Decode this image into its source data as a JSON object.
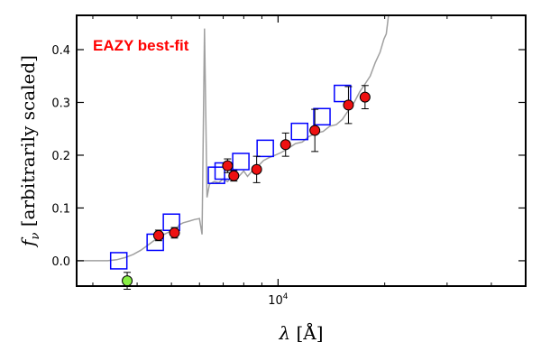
{
  "chart_data": {
    "type": "scatter",
    "annotation": "EAZY best-fit",
    "annotation_color": "#ff0000",
    "xlabel": "λ [Å]",
    "ylabel": "f_ν [arbitrarily scaled]",
    "x_scale": "log",
    "xlim": [
      2700,
      50000
    ],
    "ylim": [
      -0.048,
      0.465
    ],
    "x_ticks": [
      {
        "value": 10000,
        "label": "10^4"
      }
    ],
    "y_ticks": [
      {
        "value": 0.0,
        "label": "0.0"
      },
      {
        "value": 0.1,
        "label": "0.1"
      },
      {
        "value": 0.2,
        "label": "0.2"
      },
      {
        "value": 0.3,
        "label": "0.3"
      },
      {
        "value": 0.4,
        "label": "0.4"
      }
    ],
    "grid": false,
    "series": [
      {
        "role": "template-spectrum",
        "style": "line",
        "color": "#a0a0a0",
        "x": [
          2700,
          3000,
          3300,
          3500,
          3700,
          3900,
          4100,
          4300,
          4500,
          4700,
          4900,
          5050,
          5100,
          5150,
          5250,
          5400,
          5600,
          5800,
          6000,
          6100,
          6200,
          6300,
          6400,
          6600,
          6800,
          7000,
          7200,
          7400,
          7600,
          7800,
          8000,
          8200,
          8500,
          8800,
          9100,
          9400,
          9800,
          10200,
          10700,
          11200,
          11700,
          12200,
          12800,
          13400,
          14000,
          14600,
          15200,
          15800,
          16400,
          17000,
          17600,
          18200,
          18800,
          19400,
          19900,
          20200,
          20500
        ],
        "y": [
          0.0,
          0.0,
          0.0,
          0.002,
          0.006,
          0.012,
          0.02,
          0.03,
          0.04,
          0.048,
          0.054,
          0.06,
          0.058,
          0.056,
          0.068,
          0.072,
          0.075,
          0.078,
          0.08,
          0.05,
          0.44,
          0.12,
          0.145,
          0.15,
          0.148,
          0.155,
          0.15,
          0.158,
          0.155,
          0.162,
          0.17,
          0.16,
          0.172,
          0.18,
          0.19,
          0.195,
          0.2,
          0.205,
          0.213,
          0.222,
          0.225,
          0.235,
          0.242,
          0.245,
          0.255,
          0.258,
          0.268,
          0.285,
          0.3,
          0.32,
          0.335,
          0.35,
          0.375,
          0.395,
          0.42,
          0.43,
          0.465
        ]
      },
      {
        "role": "model-fluxes",
        "style": "open-square",
        "color": "#0000ff",
        "x": [
          3550,
          4500,
          5000,
          6700,
          7000,
          7850,
          9200,
          11500,
          13300,
          15200
        ],
        "y": [
          0.0,
          0.035,
          0.073,
          0.162,
          0.17,
          0.188,
          0.213,
          0.245,
          0.273,
          0.317
        ]
      },
      {
        "role": "observed-fluxes",
        "style": "filled-circle",
        "color": "#ee1111",
        "edge": "#000000",
        "x": [
          4600,
          5100,
          7200,
          7500,
          8700,
          10500,
          12700,
          15800,
          17600
        ],
        "y": [
          0.048,
          0.053,
          0.18,
          0.161,
          0.173,
          0.22,
          0.247,
          0.295,
          0.31
        ],
        "yerr": [
          0.01,
          0.01,
          0.013,
          0.01,
          0.025,
          0.022,
          0.04,
          0.035,
          0.022
        ]
      },
      {
        "role": "upper-limit-point",
        "style": "filled-circle",
        "color": "#88ee44",
        "edge": "#000000",
        "x": [
          3750
        ],
        "y": [
          -0.038
        ],
        "yerr": [
          0.016
        ]
      }
    ]
  }
}
